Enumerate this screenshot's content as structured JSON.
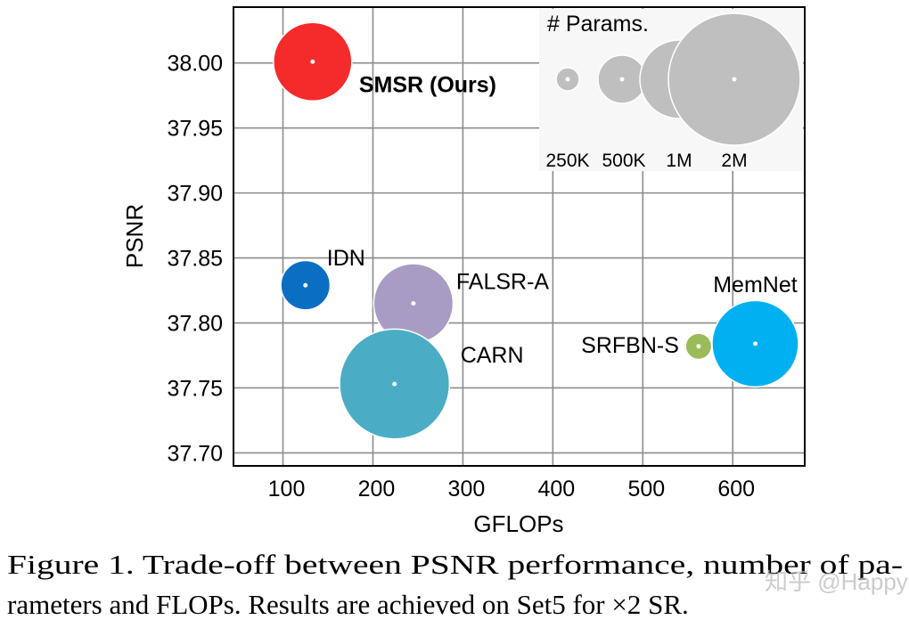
{
  "chart_data": {
    "type": "scatter",
    "subtype": "bubble",
    "xlabel": "GFLOPs",
    "ylabel": "PSNR",
    "xlim": [
      45,
      680
    ],
    "ylim": [
      37.69,
      38.043
    ],
    "xticks": [
      100,
      200,
      300,
      400,
      500,
      600
    ],
    "xtick_labels": [
      "100",
      "200",
      "300",
      "400",
      "500",
      "600"
    ],
    "yticks": [
      37.7,
      37.75,
      37.8,
      37.85,
      37.9,
      37.95,
      38.0
    ],
    "ytick_labels": [
      "37.70",
      "37.75",
      "37.80",
      "37.85",
      "37.90",
      "37.95",
      "38.00"
    ],
    "grid": true,
    "points": [
      {
        "name": "SMSR (Ours)",
        "x": 133,
        "y": 38.001,
        "params_k": 1000,
        "color": "#f52a2a",
        "bold": true
      },
      {
        "name": "IDN",
        "x": 125,
        "y": 37.829,
        "params_k": 520,
        "color": "#0a6fc2"
      },
      {
        "name": "FALSR-A",
        "x": 245,
        "y": 37.815,
        "params_k": 1020,
        "color": "#a89cc4"
      },
      {
        "name": "CARN",
        "x": 224,
        "y": 37.753,
        "params_k": 1590,
        "color": "#4bacc6"
      },
      {
        "name": "SRFBN-S",
        "x": 562,
        "y": 37.782,
        "params_k": 280,
        "color": "#9bbb59"
      },
      {
        "name": "MemNet",
        "x": 625,
        "y": 37.784,
        "params_k": 1150,
        "color": "#00b0f0"
      }
    ],
    "legend": {
      "title": "# Params.",
      "placement": "top-right",
      "color": "#bfbfbf",
      "entries": [
        {
          "label": "250K",
          "params_k": 250
        },
        {
          "label": "500K",
          "params_k": 500
        },
        {
          "label": "1M",
          "params_k": 1000
        },
        {
          "label": "2M",
          "params_k": 2000
        }
      ]
    }
  },
  "caption": {
    "line1": "Figure 1. Trade-off between PSNR performance, number of pa-",
    "line2": "rameters and FLOPs. Results are achieved on Set5 for ×2 SR."
  },
  "watermark": "知乎 @Happy"
}
